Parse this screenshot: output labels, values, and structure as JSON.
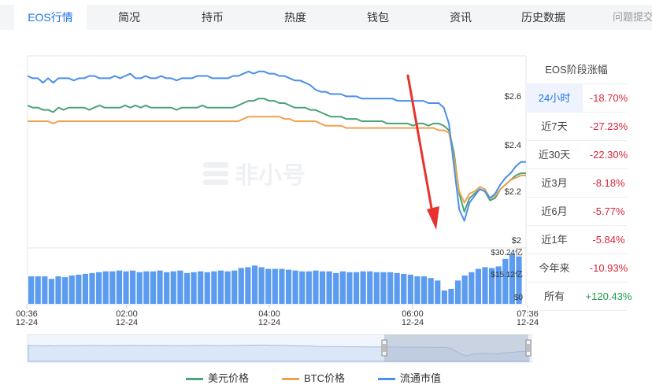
{
  "tabs": [
    {
      "label": "EOS行情",
      "active": true
    },
    {
      "label": "简况"
    },
    {
      "label": "持币"
    },
    {
      "label": "热度"
    },
    {
      "label": "钱包"
    },
    {
      "label": "资讯"
    },
    {
      "label": "历史数据"
    },
    {
      "label": "问题提交"
    }
  ],
  "watermark": "非小号",
  "colors": {
    "usd": "#4aa37a",
    "btc": "#f0a24f",
    "cap": "#4a8fe8",
    "volume": "#5b9bf0",
    "accent": "#1d73e8",
    "negative": "#d9263c",
    "positive": "#1f9a4c"
  },
  "chart_data": {
    "type": "line",
    "x_ticks": [
      {
        "time": "00:36",
        "date": "12-24"
      },
      {
        "time": "02:00",
        "date": "12-24"
      },
      {
        "time": "04:00",
        "date": "12-24"
      },
      {
        "time": "06:00",
        "date": "12-24"
      },
      {
        "time": "07:36",
        "date": "12-24"
      }
    ],
    "y_ticks": [
      "$2.6",
      "$2.4",
      "$2.2",
      "$2"
    ],
    "ylim": [
      2.0,
      2.8
    ],
    "volume_ticks": [
      "$30.24亿",
      "$15.12亿",
      "$0"
    ],
    "volume_max": 30.24,
    "series": [
      {
        "name": "美元价格",
        "values": [
          2.63,
          2.62,
          2.62,
          2.61,
          2.61,
          2.6,
          2.62,
          2.61,
          2.62,
          2.62,
          2.62,
          2.62,
          2.61,
          2.62,
          2.63,
          2.62,
          2.62,
          2.62,
          2.62,
          2.63,
          2.62,
          2.63,
          2.62,
          2.63,
          2.62,
          2.62,
          2.62,
          2.62,
          2.62,
          2.61,
          2.62,
          2.62,
          2.62,
          2.62,
          2.63,
          2.62,
          2.62,
          2.62,
          2.62,
          2.62,
          2.62,
          2.63,
          2.64,
          2.65,
          2.65,
          2.66,
          2.66,
          2.65,
          2.65,
          2.64,
          2.64,
          2.63,
          2.62,
          2.62,
          2.62,
          2.61,
          2.61,
          2.6,
          2.59,
          2.58,
          2.58,
          2.58,
          2.57,
          2.57,
          2.57,
          2.56,
          2.56,
          2.56,
          2.56,
          2.56,
          2.55,
          2.55,
          2.55,
          2.55,
          2.55,
          2.54,
          2.55,
          2.55,
          2.54,
          2.55,
          2.55,
          2.54,
          2.52,
          2.42,
          2.24,
          2.16,
          2.22,
          2.24,
          2.26,
          2.25,
          2.21,
          2.22,
          2.26,
          2.28,
          2.3,
          2.32,
          2.33,
          2.33
        ]
      },
      {
        "name": "BTC价格",
        "values": [
          2.56,
          2.56,
          2.56,
          2.56,
          2.56,
          2.55,
          2.56,
          2.56,
          2.56,
          2.56,
          2.56,
          2.56,
          2.56,
          2.56,
          2.56,
          2.56,
          2.56,
          2.56,
          2.56,
          2.56,
          2.56,
          2.56,
          2.56,
          2.56,
          2.56,
          2.56,
          2.56,
          2.56,
          2.56,
          2.56,
          2.56,
          2.56,
          2.56,
          2.56,
          2.56,
          2.56,
          2.56,
          2.56,
          2.56,
          2.56,
          2.56,
          2.56,
          2.57,
          2.58,
          2.58,
          2.58,
          2.58,
          2.58,
          2.58,
          2.58,
          2.57,
          2.57,
          2.56,
          2.56,
          2.56,
          2.56,
          2.56,
          2.55,
          2.54,
          2.54,
          2.54,
          2.54,
          2.53,
          2.53,
          2.53,
          2.53,
          2.53,
          2.53,
          2.53,
          2.53,
          2.53,
          2.53,
          2.53,
          2.53,
          2.53,
          2.53,
          2.53,
          2.53,
          2.53,
          2.53,
          2.52,
          2.52,
          2.51,
          2.4,
          2.25,
          2.2,
          2.24,
          2.25,
          2.27,
          2.26,
          2.22,
          2.23,
          2.26,
          2.28,
          2.3,
          2.31,
          2.32,
          2.32
        ]
      },
      {
        "name": "流通市值",
        "values": [
          2.76,
          2.75,
          2.75,
          2.73,
          2.75,
          2.73,
          2.75,
          2.75,
          2.75,
          2.74,
          2.75,
          2.75,
          2.76,
          2.76,
          2.75,
          2.75,
          2.75,
          2.76,
          2.75,
          2.76,
          2.77,
          2.75,
          2.75,
          2.76,
          2.75,
          2.75,
          2.76,
          2.75,
          2.75,
          2.74,
          2.75,
          2.75,
          2.75,
          2.76,
          2.76,
          2.76,
          2.75,
          2.75,
          2.75,
          2.75,
          2.76,
          2.76,
          2.77,
          2.78,
          2.77,
          2.78,
          2.78,
          2.77,
          2.77,
          2.76,
          2.76,
          2.75,
          2.74,
          2.74,
          2.73,
          2.72,
          2.7,
          2.69,
          2.69,
          2.68,
          2.68,
          2.68,
          2.67,
          2.67,
          2.67,
          2.66,
          2.66,
          2.66,
          2.66,
          2.66,
          2.66,
          2.66,
          2.65,
          2.65,
          2.65,
          2.65,
          2.65,
          2.65,
          2.64,
          2.64,
          2.64,
          2.62,
          2.55,
          2.36,
          2.17,
          2.12,
          2.2,
          2.23,
          2.26,
          2.25,
          2.22,
          2.24,
          2.28,
          2.31,
          2.33,
          2.36,
          2.38,
          2.38
        ]
      }
    ],
    "volume": [
      16.5,
      16.5,
      16.5,
      15.0,
      16.5,
      16.0,
      17.0,
      17.5,
      18.0,
      18.5,
      19.0,
      19.5,
      19.5,
      20.0,
      19.5,
      20.0,
      19.0,
      19.5,
      19.5,
      20.0,
      19.0,
      19.5,
      20.0,
      18.5,
      19.0,
      19.5,
      19.0,
      19.5,
      20.0,
      19.5,
      20.0,
      21.5,
      22.0,
      23.0,
      22.0,
      21.0,
      21.0,
      21.0,
      20.5,
      20.0,
      19.5,
      19.5,
      20.0,
      19.5,
      19.5,
      18.5,
      19.5,
      19.0,
      19.0,
      19.5,
      19.5,
      19.0,
      19.0,
      19.0,
      18.5,
      18.0,
      17.5,
      16.5,
      16.5,
      15.5,
      14.0,
      8.0,
      9.0,
      14.0,
      17.0,
      19.0,
      21.0,
      22.0,
      21.5,
      22.5,
      27.0,
      30.0,
      28.5
    ]
  },
  "side_panel": {
    "title": "EOS阶段涨幅",
    "rows": [
      {
        "label": "24小时",
        "value": "-18.70%"
      },
      {
        "label": "近7天",
        "value": "-27.23%"
      },
      {
        "label": "近30天",
        "value": "-22.30%"
      },
      {
        "label": "近3月",
        "value": "-8.18%"
      },
      {
        "label": "近6月",
        "value": "-5.77%"
      },
      {
        "label": "近1年",
        "value": "-5.84%"
      },
      {
        "label": "今年来",
        "value": "-10.93%"
      },
      {
        "label": "所有",
        "value": "+120.43%"
      }
    ]
  },
  "legend": [
    "美元价格",
    "BTC价格",
    "流通市值"
  ]
}
